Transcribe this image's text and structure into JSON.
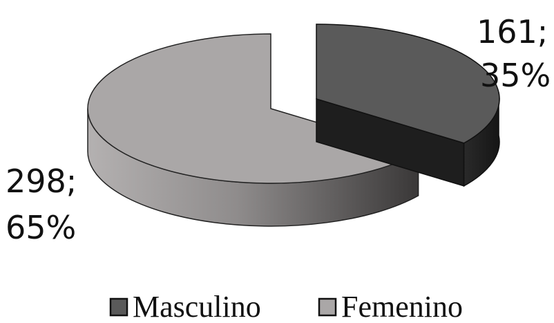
{
  "chart_data": {
    "type": "pie",
    "title": "",
    "slices": [
      {
        "name": "Masculino",
        "value": 161,
        "percent": "35%",
        "label_value": "161;",
        "label_percent": "35%",
        "color": "#5a5a5a",
        "side_color": "#1e1e1e"
      },
      {
        "name": "Femenino",
        "value": 298,
        "percent": "65%",
        "label_value": "298;",
        "label_percent": "65%",
        "color": "#aaa7a7",
        "side_color": "#7a7777"
      }
    ],
    "legend": {
      "position": "bottom",
      "items": [
        {
          "label": "Masculino",
          "color": "#5a5a5a"
        },
        {
          "label": "Femenino",
          "color": "#aaa7a7"
        }
      ]
    },
    "style": "3d-exploded"
  }
}
